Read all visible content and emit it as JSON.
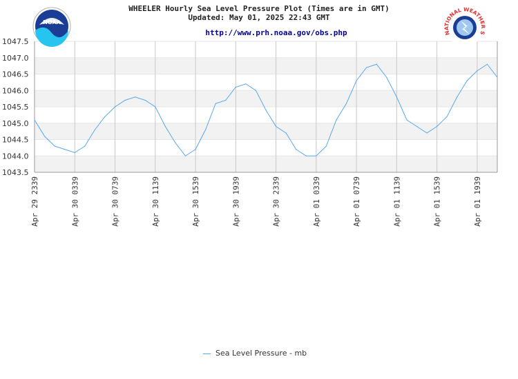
{
  "header": {
    "title": "WHEELER Hourly Sea Level Pressure Plot (Times are in GMT)",
    "updated": "Updated: May 01, 2025 22:43 GMT",
    "url": "http://www.prh.noaa.gov/obs.php"
  },
  "logos": {
    "left": {
      "icon": "noaa-logo-icon",
      "text": "NOAA"
    },
    "right": {
      "icon": "nws-logo-icon",
      "text": "NATIONAL WEATHER SERVICE"
    }
  },
  "colors": {
    "series": "#5aa7ec",
    "band": "#f2f2f2",
    "grid": "#c8c8c8",
    "axis": "#999999"
  },
  "legend": {
    "label": "Sea Level Pressure - mb"
  },
  "chart_data": {
    "type": "line",
    "title": "WHEELER Hourly Sea Level Pressure Plot (Times are in GMT)",
    "xlabel": "",
    "ylabel": "",
    "x_start": "Apr 29 2339",
    "x_step_hours": 1,
    "x_range_hours": [
      0,
      46
    ],
    "ylim": [
      1043.5,
      1047.5
    ],
    "y_ticks": [
      "1047.5",
      "1047.0",
      "1046.5",
      "1046.0",
      "1045.5",
      "1045.0",
      "1044.5",
      "1044.0",
      "1043.5"
    ],
    "x_tick_hours": [
      0,
      4,
      8,
      12,
      16,
      20,
      24,
      28,
      32,
      36,
      40,
      44
    ],
    "x_ticks": [
      "Apr 29 2339",
      "Apr 30 0339",
      "Apr 30 0739",
      "Apr 30 1139",
      "Apr 30 1539",
      "Apr 30 1939",
      "Apr 30 2339",
      "Apr 01 0339",
      "Apr 01 0739",
      "Apr 01 1139",
      "Apr 01 1539",
      "Apr 01 1939"
    ],
    "grid": true,
    "legend_position": "bottom",
    "series": [
      {
        "name": "Sea Level Pressure - mb",
        "x": [
          0,
          1,
          2,
          3,
          4,
          5,
          6,
          7,
          8,
          9,
          10,
          11,
          12,
          13,
          14,
          15,
          16,
          17,
          18,
          19,
          20,
          21,
          22,
          23,
          24,
          25,
          26,
          27,
          28,
          29,
          30,
          31,
          32,
          33,
          34,
          35,
          36,
          37,
          38,
          39,
          40,
          41,
          42,
          43,
          44,
          45,
          46
        ],
        "values": [
          1045.1,
          1044.6,
          1044.3,
          1044.2,
          1044.1,
          1044.3,
          1044.8,
          1045.2,
          1045.5,
          1045.7,
          1045.8,
          1045.7,
          1045.5,
          1044.9,
          1044.4,
          1044.0,
          1044.2,
          1044.8,
          1045.6,
          1045.7,
          1046.1,
          1046.2,
          1046.0,
          1045.4,
          1044.9,
          1044.7,
          1044.2,
          1044.0,
          1044.0,
          1044.3,
          1045.1,
          1045.6,
          1046.3,
          1046.7,
          1046.8,
          1046.4,
          1045.8,
          1045.1,
          1044.9,
          1044.7,
          1044.9,
          1045.2,
          1045.8,
          1046.3,
          1046.6,
          1046.8,
          1046.4
        ]
      }
    ]
  }
}
